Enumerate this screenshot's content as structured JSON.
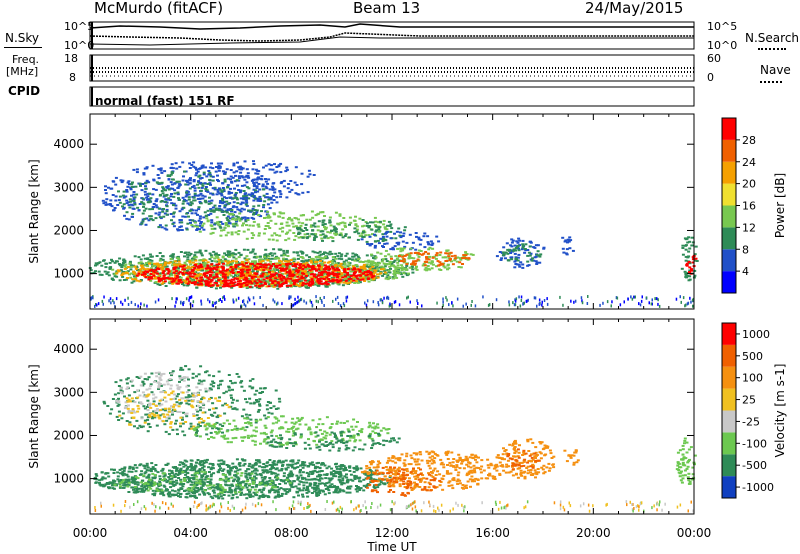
{
  "header": {
    "station": "McMurdo (fitACF)",
    "beam": "Beam 13",
    "date": "24/May/2015"
  },
  "sky_panel": {
    "left_label": "N.Sky",
    "left_ticks": [
      "10^5",
      "10^0"
    ],
    "right_label": "N.Search",
    "right_ticks": [
      "10^5",
      "10^0"
    ]
  },
  "freq_panel": {
    "left_label_line1": "Freq.",
    "left_label_line2": "[MHz]",
    "left_ticks": [
      "18",
      "8"
    ],
    "right_label": "Nave",
    "right_ticks": [
      "60",
      "0"
    ]
  },
  "cpid": {
    "label": "CPID",
    "value": "normal (fast) 151 RF"
  },
  "chart_data": [
    {
      "type": "heatmap",
      "title": "",
      "xlabel": "Time UT",
      "ylabel": "Slant Range [km]",
      "x_ticks": [
        "00:00",
        "04:00",
        "08:00",
        "12:00",
        "16:00",
        "20:00",
        "00:00"
      ],
      "y_ticks": [
        "1000",
        "2000",
        "3000",
        "4000"
      ],
      "ylim": [
        180,
        4700
      ],
      "colorbar": {
        "label": "Power [dB]",
        "ticks": [
          "4",
          "8",
          "12",
          "16",
          "20",
          "24",
          "28"
        ],
        "colors": [
          "#0000ff",
          "#2050c8",
          "#2e8b57",
          "#78c850",
          "#f0e030",
          "#f5a000",
          "#f06000",
          "#ff0000"
        ]
      }
    },
    {
      "type": "heatmap",
      "title": "",
      "xlabel": "Time UT",
      "ylabel": "Slant Range [km]",
      "x_ticks": [
        "00:00",
        "04:00",
        "08:00",
        "12:00",
        "16:00",
        "20:00",
        "00:00"
      ],
      "y_ticks": [
        "1000",
        "2000",
        "3000",
        "4000"
      ],
      "ylim": [
        180,
        4700
      ],
      "colorbar": {
        "label": "Velocity [m s-1]",
        "ticks": [
          "1000",
          "500",
          "100",
          "25",
          "-25",
          "-100",
          "-500",
          "-1000"
        ],
        "colors": [
          "#1040c0",
          "#2e8b57",
          "#6cc850",
          "#c8c8c8",
          "#f0c020",
          "#f59010",
          "#f06000",
          "#ff0000"
        ]
      }
    }
  ]
}
